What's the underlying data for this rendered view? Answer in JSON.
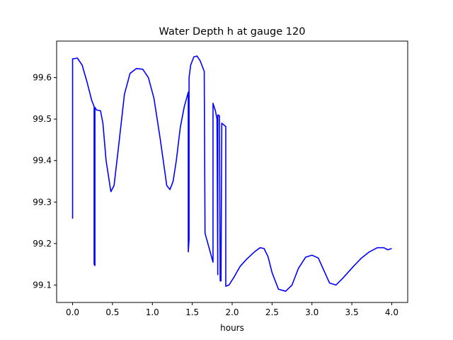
{
  "chart_data": {
    "type": "line",
    "title": "Water Depth h at gauge 120",
    "xlabel": "hours",
    "ylabel": "",
    "xlim": [
      -0.2,
      4.2
    ],
    "ylim": [
      99.058,
      99.688
    ],
    "grid": false,
    "x_ticks": [
      0.0,
      0.5,
      1.0,
      1.5,
      2.0,
      2.5,
      3.0,
      3.5,
      4.0
    ],
    "x_tick_labels": [
      "0.0",
      "0.5",
      "1.0",
      "1.5",
      "2.0",
      "2.5",
      "3.0",
      "3.5",
      "4.0"
    ],
    "y_ticks": [
      99.1,
      99.2,
      99.3,
      99.4,
      99.5,
      99.6
    ],
    "y_tick_labels": [
      "99.1",
      "99.2",
      "99.3",
      "99.4",
      "99.5",
      "99.6"
    ],
    "series": [
      {
        "color": "#0000ff",
        "x": [
          0.0,
          0.0,
          0.06,
          0.12,
          0.18,
          0.24,
          0.27,
          0.27,
          0.28,
          0.28,
          0.3,
          0.35,
          0.38,
          0.42,
          0.48,
          0.52,
          0.58,
          0.65,
          0.72,
          0.8,
          0.88,
          0.95,
          1.02,
          1.1,
          1.18,
          1.22,
          1.26,
          1.3,
          1.35,
          1.4,
          1.45,
          1.45,
          1.46,
          1.46,
          1.48,
          1.52,
          1.56,
          1.6,
          1.65,
          1.66,
          1.76,
          1.76,
          1.79,
          1.81,
          1.82,
          1.82,
          1.84,
          1.85,
          1.86,
          1.87,
          1.92,
          1.92,
          1.96,
          2.02,
          2.1,
          2.18,
          2.28,
          2.35,
          2.4,
          2.45,
          2.5,
          2.58,
          2.67,
          2.75,
          2.83,
          2.92,
          3.0,
          3.08,
          3.15,
          3.22,
          3.3,
          3.38,
          3.45,
          3.52,
          3.62,
          3.72,
          3.82,
          3.9,
          3.95,
          4.0
        ],
        "y": [
          99.26,
          99.645,
          99.647,
          99.63,
          99.59,
          99.545,
          99.53,
          99.15,
          99.147,
          99.528,
          99.522,
          99.52,
          99.49,
          99.4,
          99.325,
          99.34,
          99.44,
          99.56,
          99.61,
          99.622,
          99.62,
          99.6,
          99.55,
          99.45,
          99.34,
          99.33,
          99.35,
          99.4,
          99.48,
          99.53,
          99.565,
          99.18,
          99.21,
          99.6,
          99.63,
          99.65,
          99.652,
          99.64,
          99.615,
          99.225,
          99.155,
          99.538,
          99.52,
          99.5,
          99.125,
          99.51,
          99.508,
          99.11,
          99.11,
          99.49,
          99.482,
          99.097,
          99.1,
          99.118,
          99.145,
          99.162,
          99.18,
          99.19,
          99.188,
          99.168,
          99.13,
          99.09,
          99.085,
          99.1,
          99.14,
          99.167,
          99.172,
          99.165,
          99.135,
          99.105,
          99.1,
          99.115,
          99.13,
          99.145,
          99.165,
          99.18,
          99.19,
          99.19,
          99.185,
          99.188
        ]
      }
    ]
  }
}
